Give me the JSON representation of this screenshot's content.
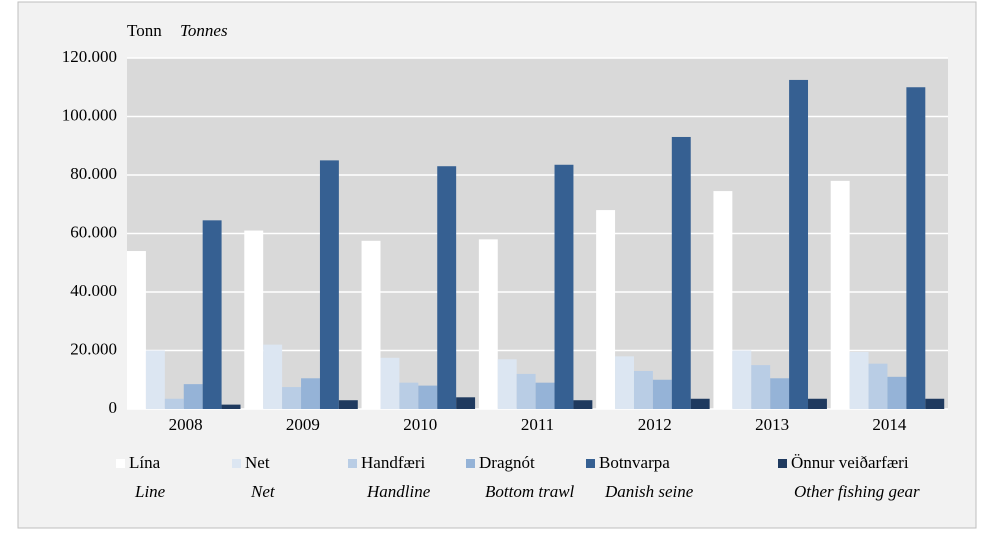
{
  "chart_data": {
    "type": "bar",
    "ylabel": "Tonn",
    "ylabel_translation": "Tonnes",
    "categories": [
      "2008",
      "2009",
      "2010",
      "2011",
      "2012",
      "2013",
      "2014"
    ],
    "series": [
      {
        "name": "Lína",
        "translation": "Line",
        "color": "#ffffff",
        "values": [
          54000,
          61000,
          57500,
          58000,
          68000,
          74500,
          78000
        ]
      },
      {
        "name": "Net",
        "translation": "Net",
        "color": "#dce6f2",
        "values": [
          20000,
          22000,
          17500,
          17000,
          18000,
          20000,
          19500
        ]
      },
      {
        "name": "Handfæri",
        "translation": "Handline",
        "color": "#b9cde5",
        "values": [
          3500,
          7500,
          9000,
          12000,
          13000,
          15000,
          15500
        ]
      },
      {
        "name": "Dragnót",
        "translation": "Bottom trawl",
        "color": "#95b3d7",
        "values": [
          8500,
          10500,
          8000,
          9000,
          10000,
          10500,
          11000
        ]
      },
      {
        "name": "Botnvarpa",
        "translation": "Danish seine",
        "color": "#366092",
        "values": [
          64500,
          85000,
          83000,
          83500,
          93000,
          112500,
          110000
        ]
      },
      {
        "name": "Önnur veiðarfæri",
        "translation": "Other fishing gear",
        "color": "#1f3a5f",
        "values": [
          1500,
          3000,
          4000,
          3000,
          3500,
          3500,
          3500
        ]
      }
    ],
    "ylim": [
      0,
      120000
    ],
    "yticks": [
      0,
      {
        "value": 20000,
        "label": "20.000"
      },
      {
        "value": 40000,
        "label": "40.000"
      },
      {
        "value": 60000,
        "label": "60.000"
      },
      {
        "value": 80000,
        "label": "80.000"
      },
      {
        "value": 100000,
        "label": "100.000"
      },
      {
        "value": 120000,
        "label": "120.000"
      }
    ],
    "grid": true
  }
}
